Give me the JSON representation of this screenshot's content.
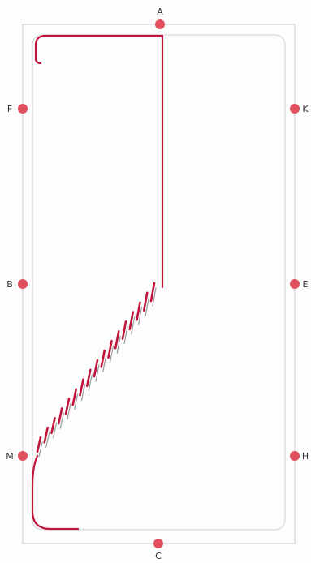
{
  "colors": {
    "border": "#c9c9c9",
    "point": "#e0505e",
    "path": "#c0143a",
    "stitch": "#c0143a",
    "stitch_shadow": "#9a9a9a",
    "label": "#333333"
  },
  "points": [
    {
      "id": "A",
      "label": "A"
    },
    {
      "id": "F",
      "label": "F"
    },
    {
      "id": "K",
      "label": "K"
    },
    {
      "id": "B",
      "label": "B"
    },
    {
      "id": "E",
      "label": "E"
    },
    {
      "id": "M",
      "label": "M"
    },
    {
      "id": "H",
      "label": "H"
    },
    {
      "id": "C",
      "label": "C"
    }
  ],
  "stitch_count": 17
}
